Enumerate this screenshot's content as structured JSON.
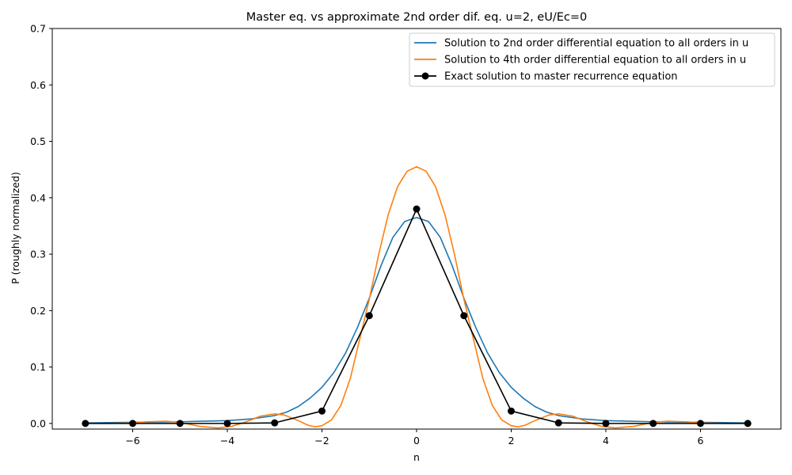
{
  "chart_data": {
    "type": "line",
    "title": "Master eq. vs approximate 2nd order dif. eq. u=2, eU/Ec=0",
    "xlabel": "n",
    "ylabel": "P (roughly normalized)",
    "xlim": [
      -7.7,
      7.7
    ],
    "ylim": [
      -0.01,
      0.7
    ],
    "xticks": [
      -6,
      -4,
      -2,
      0,
      2,
      4,
      6
    ],
    "xtick_labels": [
      "−6",
      "−4",
      "−2",
      "0",
      "2",
      "4",
      "6"
    ],
    "yticks": [
      0.0,
      0.1,
      0.2,
      0.3,
      0.4,
      0.5,
      0.6,
      0.7
    ],
    "ytick_labels": [
      "0.0",
      "0.1",
      "0.2",
      "0.3",
      "0.4",
      "0.5",
      "0.6",
      "0.7"
    ],
    "grid": false,
    "legend_position": "top-right",
    "series": [
      {
        "name": "Solution to 2nd order differential equation to all orders in u",
        "color": "#1f77b4",
        "style": "line",
        "x": [
          -7,
          -6.5,
          -6,
          -5.5,
          -5,
          -4.5,
          -4,
          -3.5,
          -3,
          -2.75,
          -2.5,
          -2.25,
          -2,
          -1.75,
          -1.5,
          -1.25,
          -1,
          -0.75,
          -0.5,
          -0.25,
          0,
          0.25,
          0.5,
          0.75,
          1,
          1.25,
          1.5,
          1.75,
          2,
          2.25,
          2.5,
          2.75,
          3,
          3.5,
          4,
          4.5,
          5,
          5.5,
          6,
          6.5,
          7
        ],
        "y": [
          0.001,
          0.0015,
          0.002,
          0.0025,
          0.003,
          0.004,
          0.005,
          0.008,
          0.014,
          0.02,
          0.03,
          0.045,
          0.064,
          0.09,
          0.125,
          0.17,
          0.222,
          0.28,
          0.33,
          0.358,
          0.365,
          0.358,
          0.33,
          0.28,
          0.222,
          0.17,
          0.125,
          0.09,
          0.064,
          0.045,
          0.03,
          0.02,
          0.014,
          0.008,
          0.005,
          0.004,
          0.003,
          0.0025,
          0.002,
          0.0015,
          0.001
        ]
      },
      {
        "name": "Solution to 4th order differential equation to all orders in u",
        "color": "#ff7f0e",
        "style": "line",
        "x": [
          -7,
          -6.5,
          -6,
          -5.7,
          -5.3,
          -5,
          -4.6,
          -4.2,
          -3.9,
          -3.6,
          -3.3,
          -3,
          -2.8,
          -2.5,
          -2.3,
          -2.15,
          -2,
          -1.8,
          -1.6,
          -1.4,
          -1.2,
          -1,
          -0.8,
          -0.6,
          -0.4,
          -0.2,
          0,
          0.2,
          0.4,
          0.6,
          0.8,
          1,
          1.2,
          1.4,
          1.6,
          1.8,
          2,
          2.15,
          2.3,
          2.5,
          2.8,
          3,
          3.3,
          3.6,
          3.9,
          4.2,
          4.6,
          5,
          5.3,
          5.7,
          6,
          6.5,
          7
        ],
        "y": [
          0.0,
          0.0,
          0.001,
          0.003,
          0.004,
          0.002,
          -0.005,
          -0.008,
          -0.005,
          0.003,
          0.013,
          0.017,
          0.015,
          0.005,
          -0.003,
          -0.006,
          -0.004,
          0.006,
          0.032,
          0.08,
          0.15,
          0.22,
          0.3,
          0.37,
          0.42,
          0.447,
          0.455,
          0.447,
          0.42,
          0.37,
          0.3,
          0.22,
          0.15,
          0.08,
          0.032,
          0.006,
          -0.004,
          -0.006,
          -0.003,
          0.005,
          0.015,
          0.017,
          0.013,
          0.003,
          -0.005,
          -0.008,
          -0.005,
          0.002,
          0.004,
          0.003,
          0.001,
          0.0,
          0.0
        ]
      },
      {
        "name": "Exact solution to master recurrence equation",
        "color": "#000000",
        "style": "line+markers",
        "x": [
          -7,
          -6,
          -5,
          -4,
          -3,
          -2,
          -1,
          0,
          1,
          2,
          3,
          4,
          5,
          6,
          7
        ],
        "y": [
          0.0,
          0.0,
          0.0,
          0.0,
          0.001,
          0.022,
          0.191,
          0.38,
          0.191,
          0.022,
          0.001,
          0.0,
          0.0,
          0.0,
          0.0
        ]
      }
    ]
  }
}
